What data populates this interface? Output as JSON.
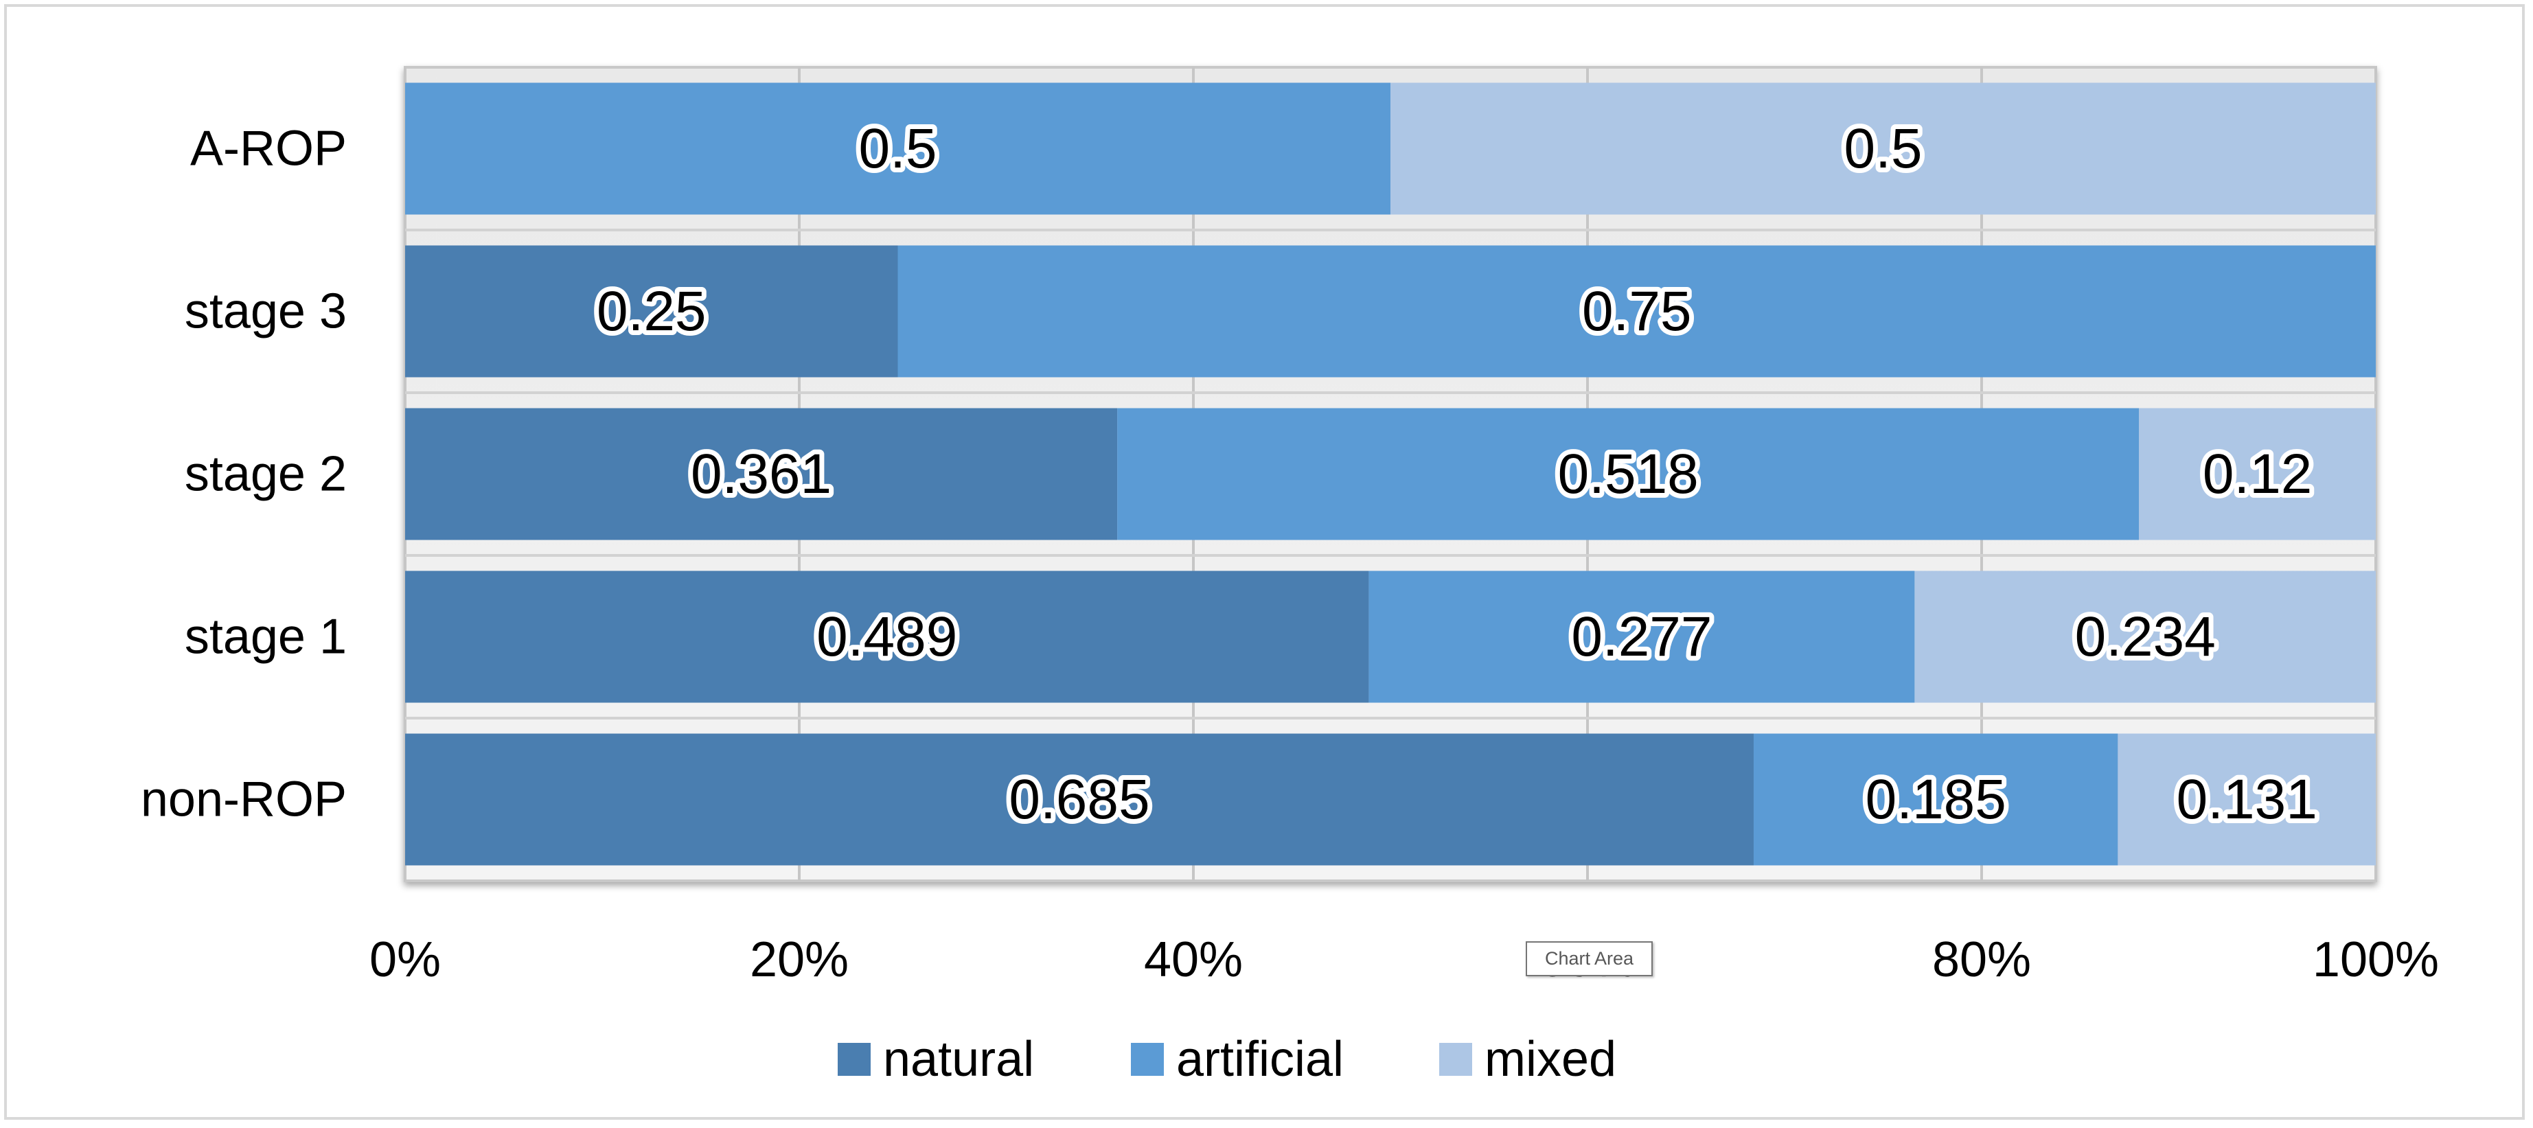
{
  "chart_data": {
    "type": "bar",
    "orientation": "horizontal",
    "stacked": "percent",
    "categories": [
      "non-ROP",
      "stage 1",
      "stage 2",
      "stage 3",
      "A-ROP"
    ],
    "series": [
      {
        "name": "natural",
        "color": "#4a7eb0",
        "values": [
          0.685,
          0.489,
          0.361,
          0.25,
          null
        ]
      },
      {
        "name": "artificial",
        "color": "#5b9bd5",
        "values": [
          0.185,
          0.277,
          0.518,
          0.75,
          0.5
        ]
      },
      {
        "name": "mixed",
        "color": "#adc6e5",
        "values": [
          0.131,
          0.234,
          0.12,
          null,
          0.5
        ]
      }
    ],
    "data_labels": [
      [
        "0.685",
        "0.185",
        "0.131"
      ],
      [
        "0.489",
        "0.277",
        "0.234"
      ],
      [
        "0.361",
        "0.518",
        "0.12"
      ],
      [
        "0.25",
        "0.75",
        null
      ],
      [
        null,
        "0.5",
        "0.5"
      ]
    ],
    "x_ticks": [
      "0%",
      "20%",
      "40%",
      "60%",
      "80%",
      "100%"
    ],
    "xlim": [
      0,
      1
    ],
    "legend_position": "bottom",
    "grid": "vertical"
  },
  "tooltip": {
    "text": "Chart Area"
  }
}
